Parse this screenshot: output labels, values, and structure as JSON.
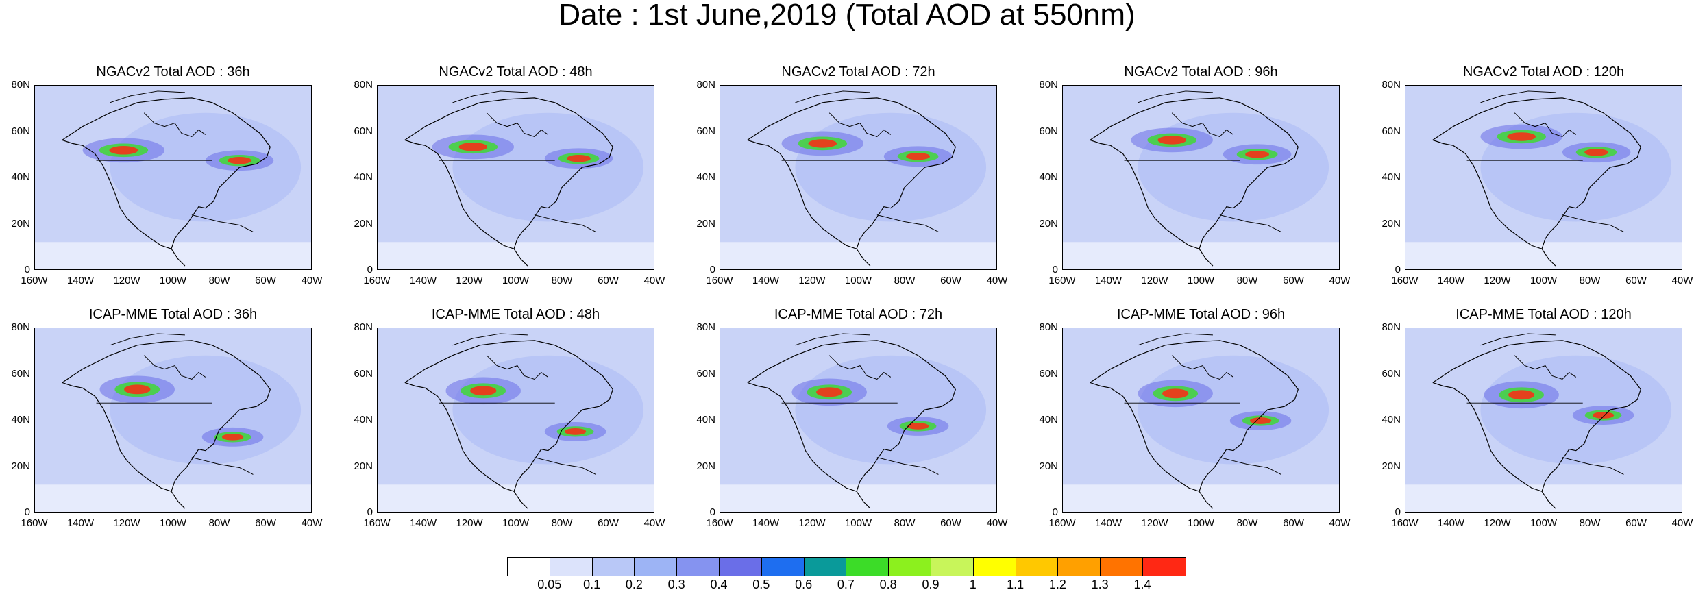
{
  "title": "Date : 1st June,2019 (Total AOD at 550nm)",
  "rows": [
    {
      "model": "NGACv2",
      "panels": [
        {
          "title": "NGACv2 Total AOD : 36h"
        },
        {
          "title": "NGACv2 Total AOD : 48h"
        },
        {
          "title": "NGACv2 Total AOD : 72h"
        },
        {
          "title": "NGACv2 Total AOD : 96h"
        },
        {
          "title": "NGACv2 Total AOD : 120h"
        }
      ]
    },
    {
      "model": "ICAP-MME",
      "panels": [
        {
          "title": "ICAP-MME Total AOD : 36h"
        },
        {
          "title": "ICAP-MME Total AOD : 48h"
        },
        {
          "title": "ICAP-MME Total AOD : 72h"
        },
        {
          "title": "ICAP-MME Total AOD : 96h"
        },
        {
          "title": "ICAP-MME Total AOD : 120h"
        }
      ]
    }
  ],
  "lat_ticks": [
    "80N",
    "60N",
    "40N",
    "20N",
    "0"
  ],
  "lon_ticks": [
    "160W",
    "140W",
    "120W",
    "100W",
    "80W",
    "60W",
    "40W"
  ],
  "colorbar": {
    "labels": [
      "0.05",
      "0.1",
      "0.2",
      "0.3",
      "0.4",
      "0.5",
      "0.6",
      "0.7",
      "0.8",
      "0.9",
      "1",
      "1.1",
      "1.2",
      "1.3",
      "1.4"
    ],
    "colors": [
      "#ffffff",
      "#dce3fb",
      "#b9c8f7",
      "#9db4f5",
      "#8593f0",
      "#6a6ee8",
      "#1e6ef0",
      "#0a9a9a",
      "#3cdc28",
      "#8cf01e",
      "#c8f55a",
      "#ffff00",
      "#ffc800",
      "#ffa000",
      "#ff7300",
      "#ff2814"
    ]
  }
}
